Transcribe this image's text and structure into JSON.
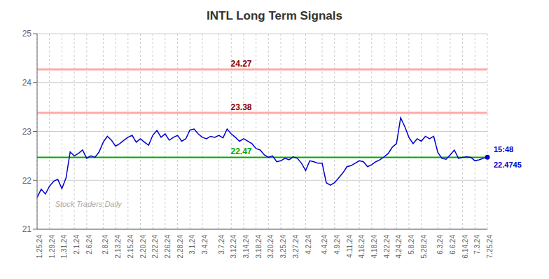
{
  "chart_data": {
    "type": "line",
    "title": "INTL Long Term Signals",
    "categories": [
      "1.25.24",
      null,
      null,
      "1.29.24",
      null,
      null,
      "1.31.24",
      null,
      null,
      "2.1.24",
      null,
      null,
      "2.6.24",
      null,
      null,
      null,
      "2.8.24",
      null,
      null,
      "2.13.24",
      null,
      null,
      "2.15.24",
      null,
      null,
      "2.20.24",
      null,
      null,
      "2.22.24",
      null,
      null,
      "2.26.24",
      null,
      null,
      "2.28.24",
      null,
      null,
      "3.1.24",
      null,
      null,
      "3.4.24",
      null,
      null,
      null,
      "3.7.24",
      null,
      null,
      "3.12.24",
      null,
      null,
      "3.14.24",
      null,
      null,
      "3.18.24",
      null,
      null,
      "3.20.24",
      null,
      null,
      "3.25.24",
      null,
      null,
      "3.27.24",
      null,
      null,
      "4.2.24",
      null,
      null,
      null,
      "4.4.24",
      null,
      null,
      "4.9.24",
      null,
      null,
      "4.11.24",
      null,
      null,
      "4.16.24",
      null,
      null,
      "4.18.24",
      null,
      null,
      "4.22.24",
      null,
      null,
      "4.24.24",
      null,
      null,
      "5.8.24",
      null,
      null,
      "5.28.24",
      null,
      null,
      null,
      "6.3.24",
      null,
      null,
      "6.6.24",
      null,
      null,
      "6.14.24",
      null,
      null,
      "7.3.24",
      null,
      null,
      "7.25.24"
    ],
    "values": [
      21.65,
      21.82,
      21.72,
      21.88,
      21.98,
      22.02,
      21.83,
      22.05,
      22.58,
      22.5,
      22.55,
      22.62,
      22.45,
      22.5,
      22.47,
      22.58,
      22.78,
      22.9,
      22.82,
      22.7,
      22.75,
      22.82,
      22.88,
      22.92,
      22.78,
      22.85,
      22.78,
      22.72,
      22.92,
      23.02,
      22.88,
      22.95,
      22.82,
      22.88,
      22.92,
      22.8,
      22.85,
      23.03,
      23.05,
      22.95,
      22.88,
      22.85,
      22.9,
      22.88,
      22.92,
      22.87,
      23.05,
      22.95,
      22.88,
      22.8,
      22.85,
      22.8,
      22.75,
      22.65,
      22.62,
      22.52,
      22.47,
      22.5,
      22.38,
      22.4,
      22.45,
      22.42,
      22.48,
      22.45,
      22.35,
      22.2,
      22.4,
      22.38,
      22.35,
      22.35,
      21.95,
      21.9,
      21.95,
      22.05,
      22.15,
      22.28,
      22.3,
      22.35,
      22.4,
      22.38,
      22.28,
      22.32,
      22.38,
      22.42,
      22.48,
      22.55,
      22.68,
      22.75,
      23.28,
      23.1,
      22.88,
      22.75,
      22.85,
      22.8,
      22.9,
      22.85,
      22.9,
      22.57,
      22.45,
      22.43,
      22.52,
      22.62,
      22.45,
      22.47,
      22.48,
      22.47,
      22.4,
      22.42,
      22.45,
      22.4745
    ],
    "color": "#0000cc",
    "ylim": [
      21,
      25
    ],
    "yticks": [
      21,
      22,
      23,
      24,
      25
    ],
    "grid": true,
    "reference_lines": [
      {
        "value": 22.47,
        "label": "22.47",
        "color": "#00aa00",
        "label_color": "#00aa00"
      },
      {
        "value": 24.27,
        "label": "24.27",
        "color": "#ffaaaa",
        "label_color": "#8b0000"
      },
      {
        "value": 23.38,
        "label": "23.38",
        "color": "#ffaaaa",
        "label_color": "#8b0000"
      }
    ],
    "annotations": {
      "last_point": [
        "15:48",
        "22.4745"
      ],
      "watermark": "Stock Traders Daily",
      "watermark_color": "#aaaaaa"
    }
  }
}
